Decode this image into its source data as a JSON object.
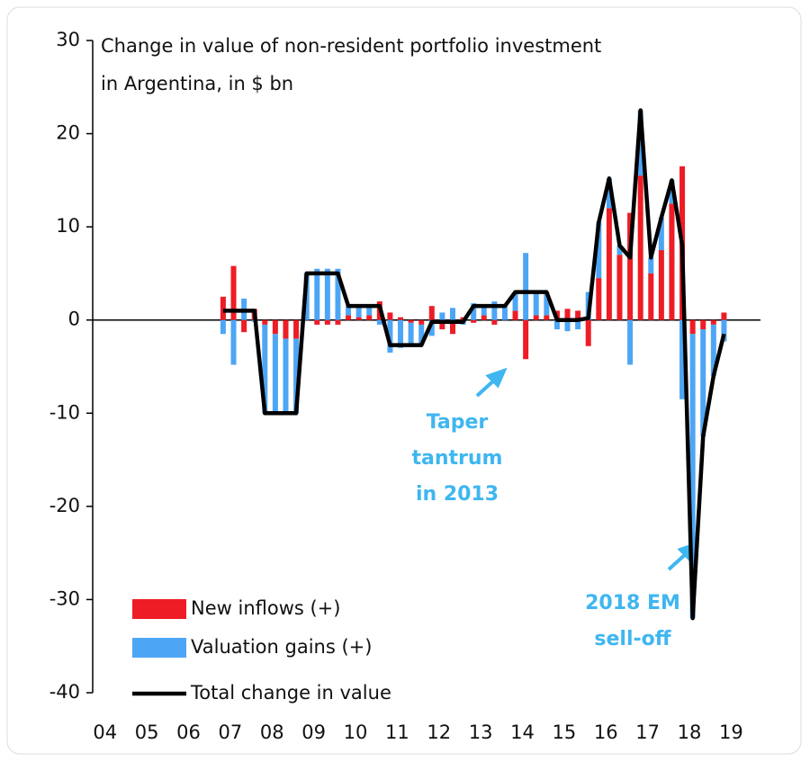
{
  "chart_data": {
    "type": "bar",
    "title": [
      "Change in value of non-resident portfolio investment",
      "in Argentina, in $ bn"
    ],
    "categories": [
      "04",
      null,
      null,
      null,
      "05",
      null,
      null,
      null,
      "06",
      null,
      null,
      null,
      "07",
      null,
      null,
      null,
      "08",
      null,
      null,
      null,
      "09",
      null,
      null,
      null,
      "10",
      null,
      null,
      null,
      "11",
      null,
      null,
      null,
      "12",
      null,
      null,
      null,
      "13",
      null,
      null,
      null,
      "14",
      null,
      null,
      null,
      "15",
      null,
      null,
      null,
      "16",
      null,
      null,
      null,
      "17",
      null,
      null,
      null,
      "18",
      null,
      null,
      null,
      "19",
      null,
      null,
      null
    ],
    "series": [
      {
        "name": "New inflows (+)",
        "color": "#ee1c25",
        "kind": "bar",
        "values": [
          null,
          null,
          null,
          null,
          null,
          null,
          null,
          null,
          null,
          null,
          null,
          null,
          2.5,
          5.8,
          -1.3,
          1.2,
          -0.5,
          -1.5,
          -2,
          -2,
          0,
          -0.5,
          -0.5,
          -0.5,
          0.5,
          0.3,
          0.5,
          2,
          0.8,
          0.3,
          -0.3,
          -0.5,
          1.5,
          -1,
          -1.5,
          0.3,
          -0.3,
          0.5,
          -0.5,
          0,
          1,
          -4.2,
          0.5,
          0.5,
          1,
          1.2,
          1,
          -2.8,
          4.5,
          12,
          7,
          11.5,
          15.5,
          5,
          7.5,
          12.5,
          16.5,
          -1.5,
          -1,
          -0.5,
          0.8,
          null,
          null,
          null
        ]
      },
      {
        "name": "Valuation gains (+)",
        "color": "#4da6f5",
        "kind": "bar",
        "values": [
          null,
          null,
          null,
          null,
          null,
          null,
          null,
          null,
          null,
          null,
          null,
          null,
          -1.5,
          -4.8,
          2.3,
          -0.2,
          -9.5,
          -8.5,
          -8,
          -8,
          5,
          5.5,
          5.5,
          5.5,
          1,
          1.2,
          1,
          -0.5,
          -3.5,
          -3,
          -2.4,
          -2.2,
          -1.7,
          0.8,
          1.3,
          -0.5,
          1.8,
          1,
          2,
          1.5,
          2,
          7.2,
          2.5,
          2.5,
          -1,
          -1.2,
          -1,
          3,
          6,
          3.2,
          1,
          -4.8,
          7,
          1.7,
          3.5,
          2.5,
          -8.5,
          -30.5,
          -11.5,
          -5.5,
          -2.3,
          null,
          null,
          null
        ]
      },
      {
        "name": "Total change in value",
        "color": "#000000",
        "kind": "line",
        "values": [
          null,
          null,
          null,
          null,
          null,
          null,
          null,
          null,
          null,
          null,
          null,
          null,
          1,
          1,
          1,
          1,
          -10,
          -10,
          -10,
          -10,
          5,
          5,
          5,
          5,
          1.5,
          1.5,
          1.5,
          1.5,
          -2.7,
          -2.7,
          -2.7,
          -2.7,
          -0.2,
          -0.2,
          -0.2,
          -0.2,
          1.5,
          1.5,
          1.5,
          1.5,
          3,
          3,
          3,
          3,
          0,
          0,
          0,
          0.2,
          10.5,
          15.2,
          8,
          6.7,
          22.5,
          6.7,
          11,
          15,
          8,
          -32,
          -12.5,
          -6,
          -1.5,
          null,
          null,
          null
        ]
      }
    ],
    "ylim": [
      -40,
      30
    ],
    "yticks": [
      -40,
      -30,
      -20,
      -10,
      0,
      10,
      20,
      30
    ],
    "annotations": [
      {
        "lines": [
          "Taper",
          "tantrum",
          "in 2013"
        ],
        "color": "#3fb6f0"
      },
      {
        "lines": [
          "2018  EM",
          "sell-off"
        ],
        "color": "#3fb6f0"
      }
    ]
  }
}
